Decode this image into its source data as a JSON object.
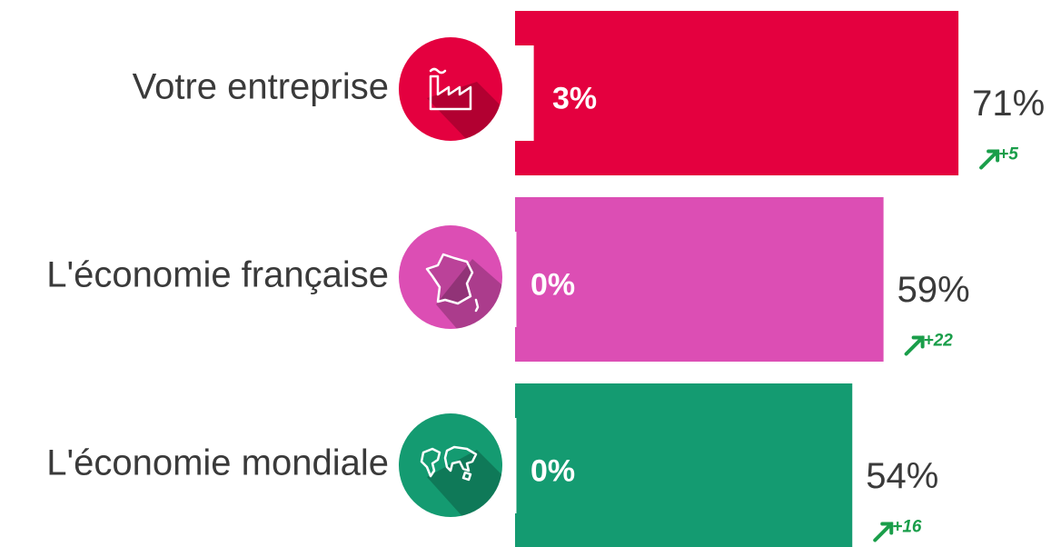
{
  "chart_data": {
    "type": "bar",
    "orientation": "horizontal",
    "categories": [
      "Votre entreprise",
      "L'économie française",
      "L'économie mondiale"
    ],
    "values": [
      71,
      59,
      54
    ],
    "value_labels": [
      "71%",
      "59%",
      "54%"
    ],
    "inner_values": [
      3,
      0,
      0
    ],
    "inner_labels": [
      "3%",
      "0%",
      "0%"
    ],
    "changes": [
      5,
      22,
      16
    ],
    "change_labels": [
      "+5",
      "+22",
      "+16"
    ],
    "colors": [
      "#e4003f",
      "#dc4eb4",
      "#149b71"
    ],
    "inner_color": "#ffffff",
    "change_color": "#1a9e4a"
  }
}
